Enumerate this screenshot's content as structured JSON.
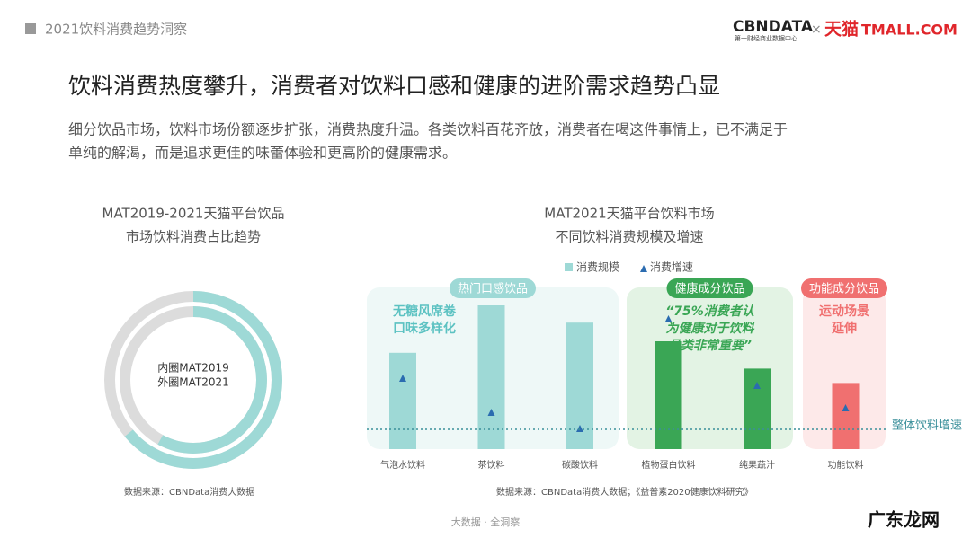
{
  "header": {
    "section": "2021饮料消费趋势洞察",
    "logo": "CBNDATA",
    "logo_sub": "第一财经商业数据中心",
    "times": "×",
    "partner": "天猫",
    "partner_en": "TMALL.COM"
  },
  "title": "饮料消费热度攀升，消费者对饮料口感和健康的进阶需求趋势凸显",
  "intro": [
    "细分饮品市场，饮料市场份额逐步扩张，消费热度升温。各类饮料百花齐放，消费者在喝这件事情上，已不满足于",
    "单纯的解渴，而是追求更佳的味蕾体验和更高阶的健康需求。"
  ],
  "chart_data": [
    {
      "type": "donut",
      "title": [
        "MAT2019-2021天猫平台饮品",
        "市场饮料消费占比趋势"
      ],
      "series": [
        {
          "name": "内圈MAT2019",
          "color": "#9ed9d6",
          "values": [
            58
          ]
        },
        {
          "name": "外圈MAT2021",
          "color": "#9ed9d6",
          "values": [
            64
          ]
        }
      ],
      "rest_color": "#dcdcdc",
      "source": "数据来源：CBNData消费大数据"
    },
    {
      "type": "bar",
      "title": [
        "MAT2021天猫平台饮料市场",
        "不同饮料消费规模及增速"
      ],
      "series": [
        {
          "name": "消费规模",
          "color": "#9ed9d6"
        },
        {
          "name": "消费增速",
          "color": "#2b6cb0"
        }
      ],
      "groups": [
        {
          "name": "热门口感饮品",
          "color": "#9ed9d6",
          "text_color": "#5cc2c2",
          "background": "#eef8f7",
          "annotation": [
            "无糖风席卷",
            "口味多样化"
          ],
          "categories": [
            "气泡水饮料",
            "茶饮料",
            "碳酸饮料"
          ],
          "scale": [
            67,
            100,
            88
          ],
          "growth": [
            79,
            41,
            23
          ]
        },
        {
          "name": "健康成分饮品",
          "color": "#3aa655",
          "text_color": "#3aa655",
          "background": "#e3f3e4",
          "annotation": [
            "“75%消费者认",
            "为健康对于饮料",
            "品类非常重要”"
          ],
          "categories": [
            "植物蛋白饮料",
            "纯果蔬汁"
          ],
          "scale": [
            75,
            56
          ],
          "growth": [
            145,
            71
          ]
        },
        {
          "name": "功能成分饮品",
          "color": "#f07070",
          "text_color": "#f07070",
          "background": "#fde9e9",
          "annotation": [
            "运动场景",
            "延伸"
          ],
          "categories": [
            "功能饮料"
          ],
          "scale": [
            46
          ],
          "growth": [
            46
          ]
        }
      ],
      "reference": {
        "label": "整体饮料增速",
        "value": 22,
        "color": "#3a8f9a"
      },
      "source": "数据来源：CBNData消费大数据；《益普素2020健康饮料研究》"
    }
  ],
  "footer": "大数据 · 全洞察",
  "watermark": "广东龙网"
}
